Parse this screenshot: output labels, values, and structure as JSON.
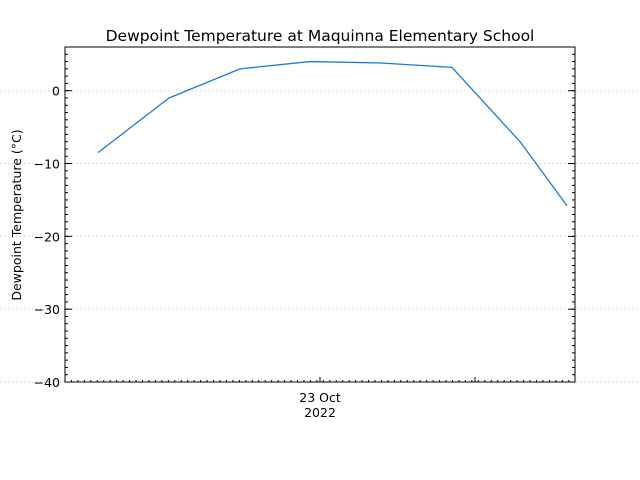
{
  "chart_data": {
    "type": "line",
    "title": "Dewpoint Temperature at Maquinna Elementary School",
    "ylabel": "Dewpoint Temperature (°C)",
    "xlabel": "",
    "x_tick_labels": [
      {
        "line1": "23 Oct",
        "line2": "2022"
      }
    ],
    "ylim": [
      -40,
      6
    ],
    "y_ticks": [
      0,
      -10,
      -20,
      -30,
      -40
    ],
    "y_minor_step": 1,
    "grid": true,
    "series": [
      {
        "color": "#1a7ad4",
        "values": [
          -8.5,
          -1.0,
          3.0,
          4.0,
          3.8,
          3.2,
          -7.0,
          -15.8
        ]
      }
    ]
  }
}
